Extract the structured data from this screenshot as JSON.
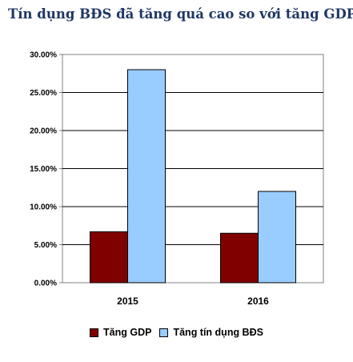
{
  "title": "Tín dụng BĐS đã tăng quá cao so với tăng GDP",
  "chart_data": {
    "type": "bar",
    "categories": [
      "2015",
      "2016"
    ],
    "series": [
      {
        "name": "Tăng GDP",
        "values": [
          6.7,
          6.5
        ],
        "color": "#800000"
      },
      {
        "name": "Tăng tín dụng BĐS",
        "values": [
          28.0,
          12.0
        ],
        "color": "#99ccff"
      }
    ],
    "ylim": [
      0,
      30
    ],
    "yticks": [
      "0.00%",
      "5.00%",
      "10.00%",
      "15.00%",
      "20.00%",
      "25.00%",
      "30.00%"
    ],
    "grid": true,
    "legend_position": "bottom"
  }
}
